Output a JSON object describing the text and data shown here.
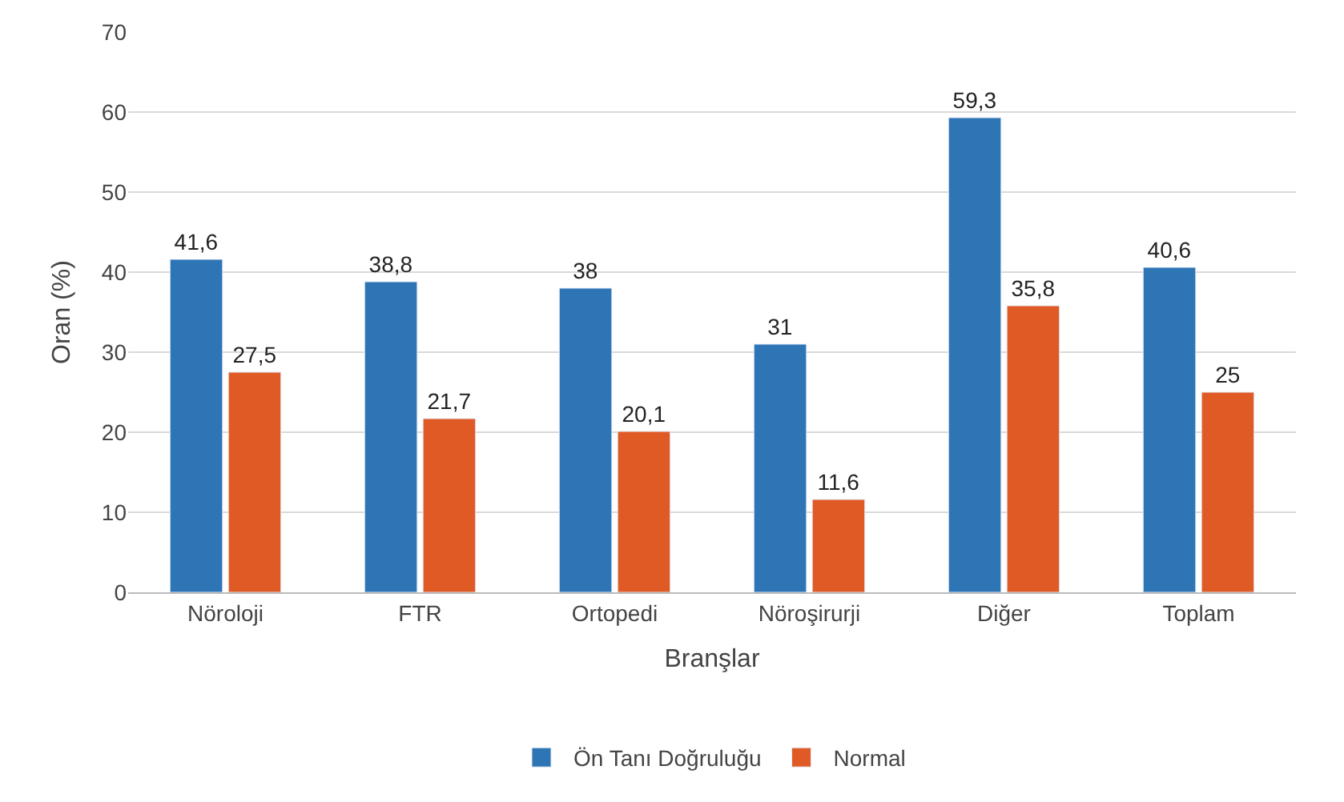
{
  "chart_data": {
    "type": "bar",
    "xlabel": "Branşlar",
    "ylabel": "Oran (%)",
    "categories": [
      "Nöroloji",
      "FTR",
      "Ortopedi",
      "Nöroşirurji",
      "Diğer",
      "Toplam"
    ],
    "series": [
      {
        "name": "Ön Tanı Doğruluğu",
        "color": "#2e75b6",
        "values": [
          41.6,
          38.8,
          38,
          31,
          59.3,
          40.6
        ],
        "value_labels": [
          "41,6",
          "38,8",
          "38",
          "31",
          "59,3",
          "40,6"
        ]
      },
      {
        "name": "Normal",
        "color": "#e05a26",
        "values": [
          27.5,
          21.7,
          20.1,
          11.6,
          35.8,
          25
        ],
        "value_labels": [
          "27,5",
          "21,7",
          "20,1",
          "11,6",
          "35,8",
          "25"
        ]
      }
    ],
    "ylim": [
      0,
      70
    ],
    "yticks": [
      0,
      10,
      20,
      30,
      40,
      50,
      60,
      70
    ],
    "grid": "y",
    "legend": "bottom"
  }
}
